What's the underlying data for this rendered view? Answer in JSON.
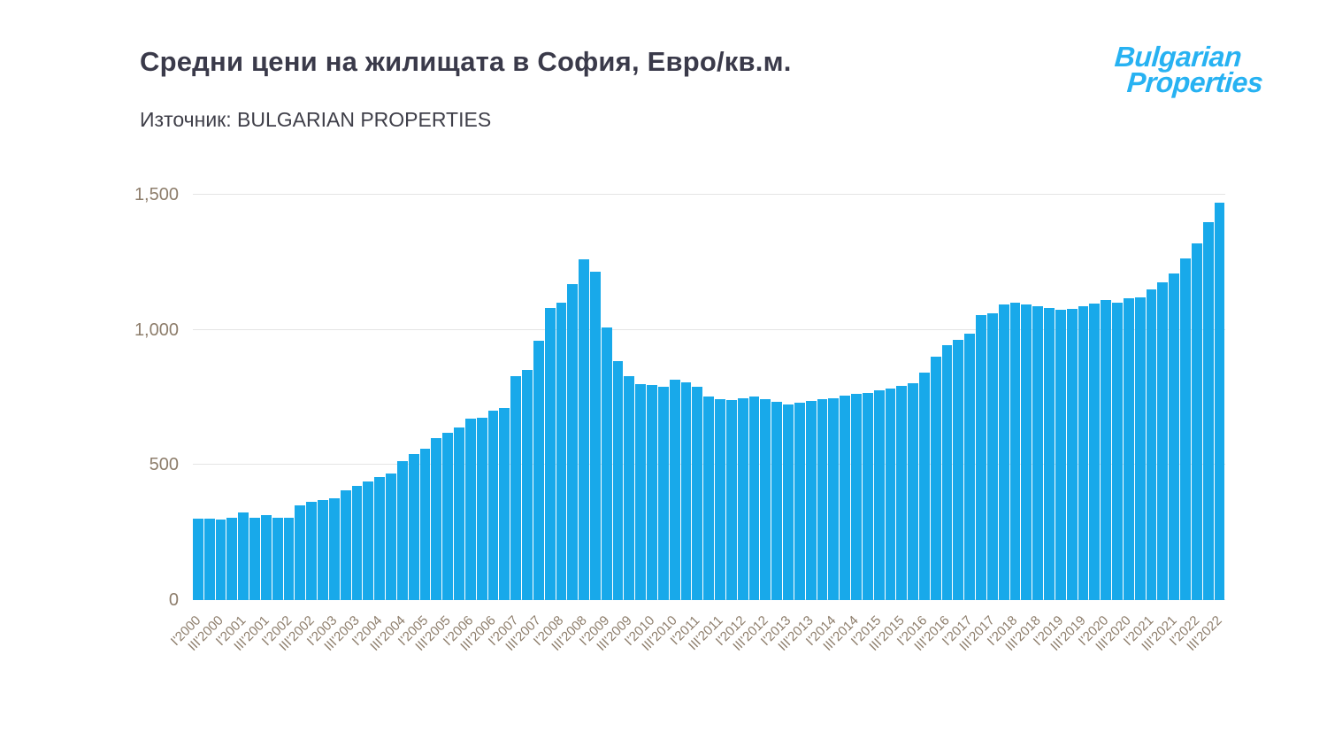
{
  "page": {
    "title": "Средни цени на жилищата в София, Евро/кв.м.",
    "source": "Източник: BULGARIAN PROPERTIES",
    "logo": {
      "line1": "Bulgarian",
      "line2": "Properties",
      "color": "#27b2f2"
    }
  },
  "chart_data": {
    "type": "bar",
    "title": "Средни цени на жилищата в София, Евро/кв.м.",
    "subtitle": "Източник: BULGARIAN PROPERTIES",
    "xlabel": "",
    "ylabel": "",
    "ylim": [
      0,
      1500
    ],
    "yticks": [
      0,
      500,
      1000,
      1500
    ],
    "ytick_labels": [
      "0",
      "500",
      "1,000",
      "1,500"
    ],
    "grid": "horizontal",
    "legend": "none",
    "bar_color": "#18a9ea",
    "axis_label_color": "#8d7d6b",
    "x_tick_every": 2,
    "categories": [
      "I'2000",
      "II'2000",
      "III'2000",
      "IV'2000",
      "I'2001",
      "II'2001",
      "III'2001",
      "IV'2001",
      "I'2002",
      "II'2002",
      "III'2002",
      "IV'2002",
      "I'2003",
      "II'2003",
      "III'2003",
      "IV'2003",
      "I'2004",
      "II'2004",
      "III'2004",
      "IV'2004",
      "I'2005",
      "II'2005",
      "III'2005",
      "IV'2005",
      "I'2006",
      "II'2006",
      "III'2006",
      "IV'2006",
      "I'2007",
      "II'2007",
      "III'2007",
      "IV'2007",
      "I'2008",
      "II'2008",
      "III'2008",
      "IV'2008",
      "I'2009",
      "II'2009",
      "III'2009",
      "IV'2009",
      "I'2010",
      "II'2010",
      "III'2010",
      "IV'2010",
      "I'2011",
      "II'2011",
      "III'2011",
      "IV'2011",
      "I'2012",
      "II'2012",
      "III'2012",
      "IV'2012",
      "I'2013",
      "II'2013",
      "III'2013",
      "IV'2013",
      "I'2014",
      "II'2014",
      "III'2014",
      "IV'2014",
      "I'2015",
      "II'2015",
      "III'2015",
      "IV'2015",
      "I'2016",
      "II'2016",
      "III'2016",
      "IV'2016",
      "I'2017",
      "II'2017",
      "III'2017",
      "IV'2017",
      "I'2018",
      "II'2018",
      "III'2018",
      "IV'2018",
      "I'2019",
      "II'2019",
      "III'2019",
      "IV'2019",
      "I'2020",
      "II'2020",
      "III'2020",
      "IV'2020",
      "I'2021",
      "II'2021",
      "III'2021",
      "IV'2021",
      "I'2022",
      "II'2022",
      "III'2022"
    ],
    "values": [
      300,
      300,
      298,
      303,
      323,
      306,
      313,
      303,
      305,
      350,
      362,
      370,
      377,
      405,
      422,
      438,
      455,
      470,
      515,
      540,
      560,
      600,
      620,
      640,
      670,
      675,
      700,
      710,
      830,
      850,
      960,
      1080,
      1100,
      1170,
      1260,
      1215,
      1010,
      885,
      830,
      800,
      795,
      790,
      815,
      805,
      790,
      752,
      745,
      740,
      748,
      752,
      742,
      735,
      725,
      730,
      737,
      742,
      748,
      757,
      764,
      766,
      775,
      782,
      792,
      803,
      843,
      900,
      944,
      963,
      985,
      1053,
      1060,
      1093,
      1100,
      1094,
      1089,
      1080,
      1075,
      1079,
      1086,
      1096,
      1110,
      1099,
      1116,
      1121,
      1150,
      1175,
      1210,
      1265,
      1320,
      1400,
      1470
    ]
  }
}
